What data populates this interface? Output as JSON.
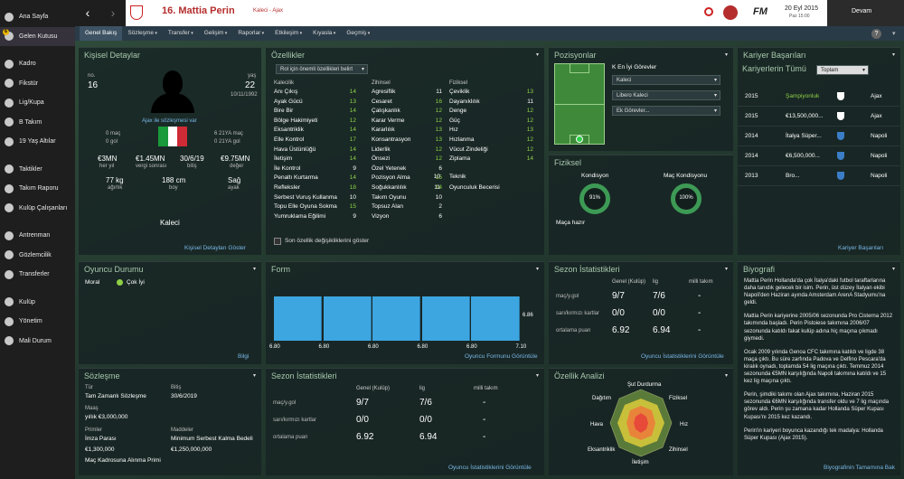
{
  "sidebar": {
    "items": [
      {
        "label": "Ana Sayfa",
        "icon": "home-icon"
      },
      {
        "label": "Gelen Kutusu",
        "icon": "inbox-icon",
        "badge": "6"
      },
      {
        "label": "Kadro",
        "icon": "squad-icon"
      },
      {
        "label": "Fikstür",
        "icon": "calendar-icon"
      },
      {
        "label": "Lig/Kupa",
        "icon": "trophy-icon"
      },
      {
        "label": "B Takım",
        "icon": "reserve-team-icon"
      },
      {
        "label": "19 Yaş Altılar",
        "icon": "youth-team-icon"
      },
      {
        "label": "Taktikler",
        "icon": "tactics-icon"
      },
      {
        "label": "Takım Raporu",
        "icon": "report-icon"
      },
      {
        "label": "Kulüp Çalışanları",
        "icon": "staff-icon"
      },
      {
        "label": "Antrenman",
        "icon": "training-icon"
      },
      {
        "label": "Gözlemcilik",
        "icon": "scouting-icon"
      },
      {
        "label": "Transferler",
        "icon": "transfers-icon"
      },
      {
        "label": "Kulüp",
        "icon": "club-icon"
      },
      {
        "label": "Yönetim",
        "icon": "board-icon"
      },
      {
        "label": "Mali Durum",
        "icon": "finances-icon"
      }
    ]
  },
  "topbar": {
    "player_title": "16. Mattia Perin",
    "subtitle": "Kaleci - Ajax",
    "date": "20 Eyl 2015",
    "day_time": "Paz 15:00",
    "continue_label": "Devam",
    "fm_logo": "FM"
  },
  "tabs": [
    "Genel Bakış",
    "Sözleşme",
    "Transfer",
    "Gelişim",
    "Raporlar",
    "Etkileşim",
    "Kıyasla",
    "Geçmiş"
  ],
  "personal": {
    "title": "Kişisel Detaylar",
    "number_label": "no.",
    "number": "16",
    "age_label": "yaş",
    "age": "22",
    "dob": "10/11/1992",
    "status": "Ajax ile sözleşmesi var",
    "left_stats": [
      "0 maç",
      "0 gol"
    ],
    "right_stats": [
      "6 21YA maç",
      "0 21YA gol"
    ],
    "values": [
      {
        "v": "€3MN",
        "l": "her yıl"
      },
      {
        "v": "€1.45MN",
        "l": "vergi sonrası"
      },
      {
        "v": "30/6/19",
        "l": "bitiş"
      },
      {
        "v": "€9.75MN",
        "l": "değer"
      }
    ],
    "phys": [
      {
        "v": "77 kg",
        "l": "ağırlık"
      },
      {
        "v": "188 cm",
        "l": "boy"
      },
      {
        "v": "Sağ",
        "l": "ayak"
      }
    ],
    "position": "Kaleci",
    "link": "Kişisel Detayları Göster"
  },
  "attributes": {
    "title": "Özellikler",
    "dropdown": "Rol için önemli özellikleri belirt",
    "col1_head": "Kalecilik",
    "col2_head": "Zihinsel",
    "col3_head": "Fiziksel",
    "col1": [
      [
        "Anı Çıkış",
        "14"
      ],
      [
        "Ayak Gücü",
        "13"
      ],
      [
        "Bire Bir",
        "14"
      ],
      [
        "Bölge Hakimiyeti",
        "12"
      ],
      [
        "Eksantriklik",
        "14"
      ],
      [
        "Elle Kontrol",
        "17"
      ],
      [
        "Hava Üstünlüğü",
        "14"
      ],
      [
        "İletişim",
        "14"
      ],
      [
        "İle Kontrol",
        "9"
      ],
      [
        "Penaltı Kurtarma",
        "14"
      ],
      [
        "Refleksler",
        "18"
      ],
      [
        "Serbest Vuruş Kullanma",
        "10"
      ],
      [
        "Topu Elle Oyuna Sokma",
        "15"
      ],
      [
        "Yumruklama Eğilimi",
        "9"
      ]
    ],
    "col2": [
      [
        "Agresiflik",
        "11"
      ],
      [
        "Cesaret",
        "16"
      ],
      [
        "Çalışkanlık",
        "12"
      ],
      [
        "Karar Verme",
        "12"
      ],
      [
        "Kararlılık",
        "13"
      ],
      [
        "Konsantrasyon",
        "13"
      ],
      [
        "Liderlik",
        "12"
      ],
      [
        "Önsezi",
        "12"
      ],
      [
        "Özel Yetenek",
        "6"
      ],
      [
        "Pozisyon Alma",
        "15"
      ],
      [
        "Soğukkanlılık",
        "14"
      ],
      [
        "Takım Oyunu",
        "10"
      ],
      [
        "Topsuz Alan",
        "2"
      ],
      [
        "Vizyon",
        "6"
      ]
    ],
    "col3": [
      [
        "Çeviklik",
        "13"
      ],
      [
        "Dayanıklılık",
        "11"
      ],
      [
        "Denge",
        "12"
      ],
      [
        "Güç",
        "12"
      ],
      [
        "Hız",
        "13"
      ],
      [
        "Hızlanma",
        "12"
      ],
      [
        "Vücut Zindeliği",
        "12"
      ],
      [
        "Ziplama",
        "14"
      ]
    ],
    "col3_extra": [
      [
        "Teknik",
        "10"
      ],
      [
        "Oyunculuk Becerisi",
        "11"
      ]
    ],
    "checkbox": "Son özellik değişikliklerini göster"
  },
  "positions": {
    "title": "Pozisyonlar",
    "best_roles": "K En İyi Görevler",
    "roles": [
      "Kaleci",
      "Libero Kaleci",
      "Ek Görevler..."
    ]
  },
  "fitness": {
    "title": "Fiziksel",
    "cond_label": "Kondisyon",
    "cond": "91%",
    "match_label": "Maç Kondisyonu",
    "match": "100%",
    "status": "Maça hazır"
  },
  "career": {
    "title": "Kariyer Başarıları",
    "subtitle": "Kariyerlerin Tümü",
    "dropdown": "Toplam",
    "rows": [
      {
        "year": "2015",
        "text": "Şampiyonluk",
        "team": "Ajax",
        "highlight": true
      },
      {
        "year": "2015",
        "text": "€13,500,000...",
        "team": "Ajax"
      },
      {
        "year": "2014",
        "text": "İtalya Süper...",
        "team": "Napoli"
      },
      {
        "year": "2014",
        "text": "€6,500,000...",
        "team": "Napoli"
      },
      {
        "year": "2013",
        "text": "Bro...",
        "team": "Napoli"
      }
    ],
    "link": "Kariyer Başarıları"
  },
  "player_status": {
    "title": "Oyuncu Durumu",
    "label": "Moral",
    "value": "Çok İyi",
    "link": "Bilgi"
  },
  "form": {
    "title": "Form",
    "link": "Oyuncu Formunu Görüntüle",
    "labels": [
      "6.80",
      "6.80",
      "6.80",
      "6.80",
      "6.80",
      "7.10"
    ],
    "right_label": "6.86"
  },
  "season_stats": {
    "title": "Sezon İstatistikleri",
    "cols": [
      "Genel (Kulüp)",
      "lig",
      "milli takım"
    ],
    "rows": [
      [
        "maç/y.gol",
        "9/7",
        "7/6"
      ],
      [
        "sarı/kırmızı kartlar",
        "0/0",
        "0/0"
      ],
      [
        "ortalama puan",
        "6.92",
        "6.94"
      ]
    ],
    "dash": "-",
    "link": "Oyuncu İstatistiklerini Görüntüle"
  },
  "bio": {
    "title": "Biyografi",
    "paragraphs": [
      "Mattia Perin Hollanda'da çok İtalya'daki futbol taraftarlarına daha tanıdık gelecek bir isim. Perin, üst düzey İtalyan ekibi Napoli'den Haziran ayında Amsterdam ArenA Stadyumu'na geldi.",
      "Mattia Perin kariyerine 2005/06 sezonunda Pro Cisterna 2012 takımında başladı. Perin Pistoiese takımına 2006/07 sezonunda katıldı fakat kulüp adına hiç maçına çıkmadı giymedi.",
      "Ocak 2009 yılında Genoa CFC takımına katıldı ve ligde 38 maça çıktı. Bu süre zarfında Padova ve Delfino Pescara'da kiralık oynadı, toplamda 54 lig maçına çıktı. Temmuz 2014 sezonunda €5MN karşılığında Napoli takımına katıldı ve 15 kez lig maçına çıktı.",
      "Perin, şimdiki takımı olan Ajax takımına, Haziran 2015 sezonunda €6MN karşılığında transfer oldu ve 7 lig maçında görev aldı. Perin şu zamana kadar Hollanda Süper Kupası Kupası'nı 2015 kez kazandı.",
      "Perin'in kariyeri boyunca kazandığı tek madalya: Hollanda Süper Kupası (Ajax 2015)."
    ],
    "link": "Biyografinin Tamamına Bak"
  },
  "contract": {
    "title": "Sözleşme",
    "items": [
      [
        "Tür",
        "Tam Zamanlı Sözleşme"
      ],
      [
        "Bitiş",
        "30/6/2019"
      ],
      [
        "Maaş",
        "yıllık €3,000,000"
      ],
      [
        "Primler",
        "İmza Parası"
      ],
      [
        "Maddeler",
        "Minimum Serbest Kalma Bedeli"
      ],
      [
        "",
        "€1,300,000"
      ],
      [
        "",
        "€1,250,000,000"
      ],
      [
        "",
        "Maç Kadrosuna Alınma Primi"
      ]
    ]
  },
  "attr_analysis": {
    "title": "Özellik Analizi",
    "labels": [
      "Şut Durdurma",
      "Fiziksel",
      "Hız",
      "Zihinsel",
      "İletişim",
      "Eksantriklik",
      "Hava",
      "Dağıtım"
    ]
  }
}
